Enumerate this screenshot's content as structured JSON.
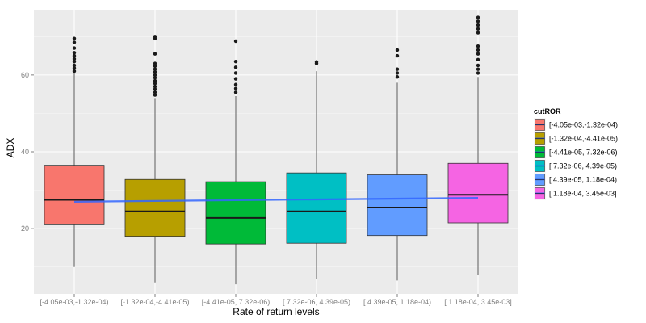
{
  "chart_data": {
    "type": "box",
    "xlabel": "Rate of return levels",
    "ylabel": "ADX",
    "ylim": [
      3,
      77
    ],
    "yticks": [
      20,
      40,
      60
    ],
    "grid": true,
    "legend": {
      "title": "cutROR",
      "position": "right"
    },
    "categories": [
      "[-4.05e-03,-1.32e-04)",
      "[-1.32e-04,-4.41e-05)",
      "[-4.41e-05, 7.32e-06)",
      "[ 7.32e-06, 4.39e-05)",
      "[ 4.39e-05, 1.18e-04)",
      "[ 1.18e-04, 3.45e-03]"
    ],
    "colors": [
      "#F8766D",
      "#B79F00",
      "#00BA38",
      "#00BFC4",
      "#619CFF",
      "#F564E3"
    ],
    "boxes": [
      {
        "min": 10,
        "q1": 21,
        "median": 27.5,
        "q3": 36.5,
        "max": 60.5,
        "outliers": [
          61,
          61.8,
          62.5,
          63.5,
          64.2,
          65,
          65.8,
          67,
          68.5,
          69.5
        ]
      },
      {
        "min": 6,
        "q1": 18,
        "median": 24.5,
        "q3": 32.8,
        "max": 54,
        "outliers": [
          54.8,
          55.5,
          56.3,
          57,
          57.8,
          58.5,
          59.3,
          60,
          60.8,
          61.5,
          62.3,
          63,
          65.5,
          69.5,
          70
        ]
      },
      {
        "min": 5.5,
        "q1": 16,
        "median": 22.8,
        "q3": 32.2,
        "max": 54.5,
        "outliers": [
          55.5,
          56.5,
          57.5,
          59,
          60.5,
          62,
          63.5,
          68.8
        ]
      },
      {
        "min": 7,
        "q1": 16.2,
        "median": 24.5,
        "q3": 34.5,
        "max": 61,
        "outliers": [
          63,
          63.4
        ]
      },
      {
        "min": 6.5,
        "q1": 18.2,
        "median": 25.5,
        "q3": 34,
        "max": 58,
        "outliers": [
          59.5,
          60.5,
          61.5,
          65,
          66.5
        ]
      },
      {
        "min": 8,
        "q1": 21.5,
        "median": 28.8,
        "q3": 37,
        "max": 59.5,
        "outliers": [
          60.5,
          61.5,
          62.5,
          64,
          65.5,
          66.5,
          67.5,
          71,
          72,
          73,
          74,
          75
        ]
      }
    ],
    "trend_line": {
      "color": "#3366FF",
      "start": 27.0,
      "end": 28.0
    }
  }
}
